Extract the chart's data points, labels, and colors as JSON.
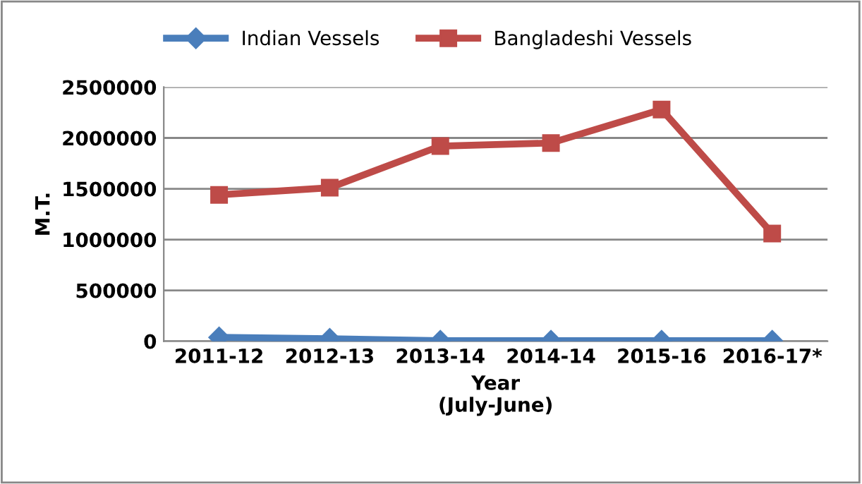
{
  "chart_data": {
    "type": "line",
    "categories": [
      "2011-12",
      "2012-13",
      "2013-14",
      "2014-14",
      "2015-16",
      "2016-17*"
    ],
    "series": [
      {
        "name": "Indian Vessels",
        "color": "#4a7ebb",
        "marker": "diamond",
        "values": [
          38000,
          24000,
          5000,
          5000,
          5000,
          5000
        ]
      },
      {
        "name": "Bangladeshi Vessels",
        "color": "#be4b48",
        "marker": "square",
        "values": [
          1440000,
          1510000,
          1920000,
          1950000,
          2280000,
          1060000
        ]
      }
    ],
    "xlabel": "Year\n(July-June)",
    "ylabel": "M.T.",
    "ylim": [
      0,
      2500000
    ],
    "yticks": [
      0,
      500000,
      1000000,
      1500000,
      2000000,
      2500000
    ],
    "grid": "y",
    "legend": "top"
  }
}
